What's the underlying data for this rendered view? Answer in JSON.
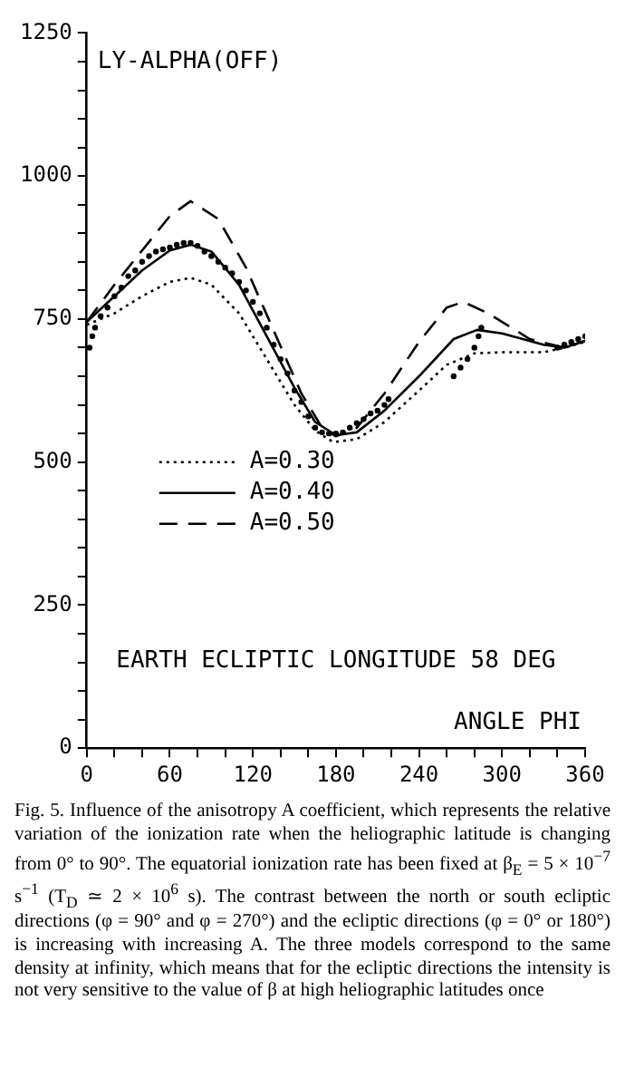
{
  "chart_data": {
    "type": "line",
    "xlabel": "ANGLE PHI",
    "annotations": [
      "LY-ALPHA(OFF)",
      "EARTH ECLIPTIC LONGITUDE 58 DEG",
      "Fig. 5. Influence of the anisotropy A coefficient, which represents the relative variation of the ionization rate when the heliographic latitude is changing from 0° to 90°. The equatorial ionization rate has been fixed at β$_{E}$ = 5 × 10$^{−7}$ s$^{−1}$ (T$_{D}$ ≃ 2 × 10$^{6}$ s). The contrast between the north or south ecliptic directions (φ = 90° and φ = 270°) and the ecliptic directions (φ = 0° or 180°) is increasing with increasing A. The three models correspond to the same density at infinity, which means that for the ecliptic directions the intensity is not very sensitive to the value of β at high heliographic latitudes once"
    ],
    "xlim": [
      0,
      360
    ],
    "xticks": [
      0,
      {
        "value": 20,
        "label": null
      },
      {
        "value": 40,
        "label": null
      },
      60,
      {
        "value": 80,
        "label": null
      },
      {
        "value": 100,
        "label": null
      },
      120,
      {
        "value": 140,
        "label": null
      },
      {
        "value": 160,
        "label": null
      },
      180,
      {
        "value": 200,
        "label": null
      },
      {
        "value": 220,
        "label": null
      },
      240,
      {
        "value": 260,
        "label": null
      },
      {
        "value": 280,
        "label": null
      },
      300,
      {
        "value": 320,
        "label": null
      },
      {
        "value": 340,
        "label": null
      },
      360
    ],
    "ylim": [
      0,
      1250
    ],
    "yticks": [
      0,
      {
        "value": 50,
        "label": null
      },
      {
        "value": 100,
        "label": null
      },
      {
        "value": 150,
        "label": null
      },
      {
        "value": 200,
        "label": null
      },
      250,
      {
        "value": 300,
        "label": null
      },
      {
        "value": 350,
        "label": null
      },
      {
        "value": 400,
        "label": null
      },
      {
        "value": 450,
        "label": null
      },
      500,
      {
        "value": 550,
        "label": null
      },
      {
        "value": 600,
        "label": null
      },
      {
        "value": 650,
        "label": null
      },
      {
        "value": 700,
        "label": null
      },
      750,
      {
        "value": 800,
        "label": null
      },
      {
        "value": 850,
        "label": null
      },
      {
        "value": 900,
        "label": null
      },
      {
        "value": 950,
        "label": null
      },
      1000,
      {
        "value": 1050,
        "label": null
      },
      {
        "value": 1100,
        "label": null
      },
      {
        "value": 1150,
        "label": null
      },
      {
        "value": 1200,
        "label": null
      },
      1250
    ],
    "grid": false,
    "legend": "left",
    "series": [
      {
        "name": "A=0.30",
        "color": "#000000",
        "line_style": "dotted",
        "marker": "none",
        "x": [
          0,
          20,
          40,
          60,
          75,
          90,
          110,
          130,
          150,
          165,
          178,
          195,
          215,
          240,
          260,
          280,
          300,
          330,
          345,
          360
        ],
        "values": [
          740,
          760,
          790,
          815,
          822,
          810,
          760,
          680,
          600,
          555,
          535,
          540,
          570,
          625,
          670,
          690,
          692,
          692,
          700,
          710
        ]
      },
      {
        "name": "A=0.40",
        "color": "#000000",
        "line_style": "solid",
        "marker": "none",
        "x": [
          0,
          20,
          40,
          60,
          75,
          90,
          110,
          130,
          150,
          165,
          180,
          195,
          215,
          240,
          265,
          282,
          300,
          330,
          345,
          360
        ],
        "values": [
          745,
          790,
          835,
          870,
          880,
          868,
          810,
          720,
          630,
          570,
          547,
          552,
          590,
          650,
          715,
          731,
          725,
          705,
          700,
          712
        ]
      },
      {
        "name": "A=0.50",
        "color": "#000000",
        "line_style": "dashed",
        "marker": "none",
        "x": [
          0,
          20,
          40,
          60,
          75,
          95,
          115,
          135,
          155,
          170,
          180,
          195,
          215,
          240,
          260,
          272,
          290,
          320,
          345,
          360
        ],
        "values": [
          745,
          810,
          870,
          930,
          956,
          925,
          840,
          730,
          620,
          560,
          545,
          560,
          620,
          710,
          770,
          780,
          760,
          715,
          700,
          712
        ]
      },
      {
        "type": "scatter",
        "color": "#000000",
        "marker": "circle",
        "x": [
          2,
          4,
          6,
          10,
          15,
          20,
          25,
          30,
          35,
          40,
          45,
          50,
          55,
          60,
          65,
          70,
          75,
          80,
          85,
          90,
          95,
          100,
          105,
          110,
          115,
          120,
          125,
          130,
          135,
          140,
          145,
          150,
          155,
          160,
          165,
          170,
          175,
          180,
          185,
          190,
          195,
          200,
          205,
          210,
          215,
          218,
          265,
          270,
          275,
          280,
          283,
          285,
          340,
          345,
          350,
          355,
          360
        ],
        "values": [
          700,
          720,
          735,
          755,
          770,
          790,
          805,
          825,
          835,
          850,
          860,
          868,
          872,
          875,
          880,
          883,
          883,
          878,
          868,
          860,
          850,
          840,
          830,
          815,
          800,
          780,
          760,
          735,
          705,
          680,
          655,
          625,
          605,
          580,
          560,
          552,
          550,
          550,
          552,
          560,
          568,
          575,
          585,
          590,
          600,
          610,
          650,
          665,
          680,
          700,
          720,
          735,
          700,
          705,
          710,
          715,
          720
        ]
      }
    ]
  }
}
